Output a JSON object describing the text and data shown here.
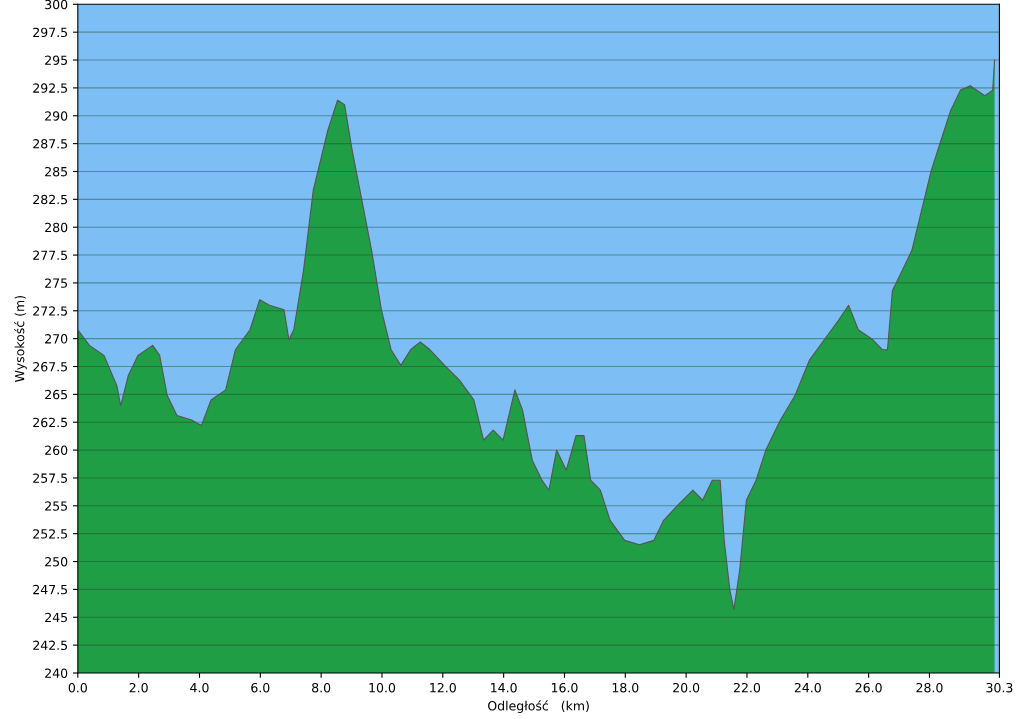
{
  "chart_data": {
    "type": "area",
    "xlabel": "Odległość   (km)",
    "ylabel": "Wysokość (m)",
    "x": [
      0.0,
      0.38,
      0.86,
      1.28,
      1.41,
      1.66,
      1.98,
      2.46,
      2.69,
      2.94,
      3.26,
      3.74,
      4.06,
      4.38,
      4.86,
      5.18,
      5.66,
      5.98,
      6.3,
      6.78,
      6.94,
      7.1,
      7.42,
      7.74,
      8.22,
      8.54,
      8.77,
      9.02,
      9.34,
      9.66,
      9.98,
      10.3,
      10.62,
      10.94,
      11.26,
      11.58,
      12.06,
      12.54,
      13.02,
      13.34,
      13.66,
      13.98,
      14.37,
      14.62,
      14.94,
      15.26,
      15.49,
      15.74,
      16.06,
      16.38,
      16.64,
      16.86,
      17.18,
      17.5,
      17.98,
      18.46,
      18.94,
      19.26,
      19.74,
      20.22,
      20.54,
      20.86,
      21.12,
      21.25,
      21.44,
      21.57,
      21.76,
      21.98,
      22.3,
      22.62,
      23.1,
      23.58,
      24.06,
      24.54,
      25.02,
      25.34,
      25.66,
      26.14,
      26.46,
      26.62,
      26.78,
      27.1,
      27.42,
      27.74,
      28.06,
      28.38,
      28.7,
      29.02,
      29.34,
      29.82,
      30.08,
      30.14
    ],
    "series": [
      {
        "color": "#1f9e45",
        "values": [
          270.8,
          269.4,
          268.5,
          265.8,
          264.0,
          266.7,
          268.5,
          269.4,
          268.5,
          264.9,
          263.1,
          262.7,
          262.2,
          264.5,
          265.4,
          269.0,
          270.8,
          273.5,
          273.0,
          272.6,
          269.9,
          270.8,
          276.1,
          283.3,
          288.7,
          291.4,
          291.0,
          286.9,
          282.4,
          277.9,
          272.6,
          269.0,
          267.6,
          269.0,
          269.7,
          269.0,
          267.6,
          266.3,
          264.5,
          260.9,
          261.8,
          260.9,
          265.4,
          263.6,
          259.1,
          257.3,
          256.4,
          260.0,
          258.2,
          261.3,
          261.3,
          257.3,
          256.4,
          253.7,
          251.9,
          251.5,
          251.9,
          253.7,
          255.1,
          256.4,
          255.5,
          257.3,
          257.3,
          251.9,
          247.4,
          245.7,
          249.2,
          255.5,
          257.3,
          260.0,
          262.7,
          264.9,
          268.1,
          269.9,
          271.7,
          273.0,
          270.8,
          269.9,
          269.0,
          269.0,
          274.3,
          276.1,
          277.9,
          281.5,
          285.1,
          287.8,
          290.5,
          292.3,
          292.7,
          291.8,
          292.3,
          295.0
        ]
      }
    ],
    "xlim": [
      0,
      30.3
    ],
    "ylim": [
      240,
      300
    ],
    "xticks": [
      {
        "value": 0,
        "label": "0.0"
      },
      {
        "value": 2,
        "label": "2.0"
      },
      {
        "value": 4,
        "label": "4.0"
      },
      {
        "value": 6,
        "label": "6.0"
      },
      {
        "value": 8,
        "label": "8.0"
      },
      {
        "value": 10,
        "label": "10.0"
      },
      {
        "value": 12,
        "label": "12.0"
      },
      {
        "value": 14,
        "label": "14.0"
      },
      {
        "value": 16,
        "label": "16.0"
      },
      {
        "value": 18,
        "label": "18.0"
      },
      {
        "value": 20,
        "label": "20.0"
      },
      {
        "value": 22,
        "label": "22.0"
      },
      {
        "value": 24,
        "label": "24.0"
      },
      {
        "value": 26,
        "label": "26.0"
      },
      {
        "value": 28,
        "label": "28.0"
      },
      {
        "value": 30.3,
        "label": "30.3"
      }
    ],
    "yticks": [
      240,
      242.5,
      245,
      247.5,
      250,
      252.5,
      255,
      257.5,
      260,
      262.5,
      265,
      267.5,
      270,
      272.5,
      275,
      277.5,
      280,
      282.5,
      285,
      287.5,
      290,
      292.5,
      295,
      297.5,
      300
    ],
    "grid": "y"
  }
}
